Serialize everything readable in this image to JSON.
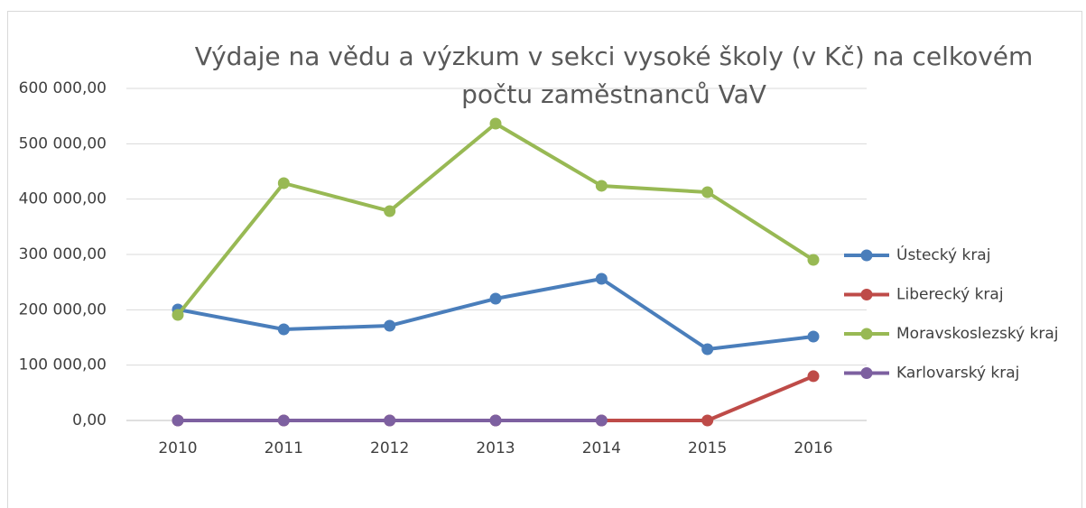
{
  "chart_data": {
    "type": "line",
    "title": "Výdaje na vědu a výzkum v sekci vysoké školy (v Kč) na celkovém počtu zaměstnanců VaV",
    "categories": [
      "2010",
      "2011",
      "2012",
      "2013",
      "2014",
      "2015",
      "2016"
    ],
    "series": [
      {
        "name": "Ústecký kraj",
        "color": "#4a7ebb",
        "values": [
          200500,
          164700,
          171200,
          220100,
          256000,
          128800,
          151600
        ]
      },
      {
        "name": "Liberecký kraj",
        "color": "#be4b48",
        "values": [
          0,
          0,
          0,
          0,
          0,
          0,
          80000
        ]
      },
      {
        "name": "Moravskoslezský kraj",
        "color": "#98b954",
        "values": [
          190800,
          428800,
          378300,
          536400,
          424000,
          412500,
          290200
        ]
      },
      {
        "name": "Karlovarský kraj",
        "color": "#7d60a0",
        "values": [
          0,
          0,
          0,
          0,
          0,
          null,
          null
        ]
      }
    ],
    "ylim": [
      0,
      600000
    ],
    "yticks": [
      {
        "value": 0,
        "label": "0,00"
      },
      {
        "value": 100000,
        "label": "100 000,00"
      },
      {
        "value": 200000,
        "label": "200 000,00"
      },
      {
        "value": 300000,
        "label": "300 000,00"
      },
      {
        "value": 400000,
        "label": "400 000,00"
      },
      {
        "value": 500000,
        "label": "500 000,00"
      },
      {
        "value": 600000,
        "label": "600 000,00"
      }
    ],
    "grid": true,
    "legend": "right"
  }
}
